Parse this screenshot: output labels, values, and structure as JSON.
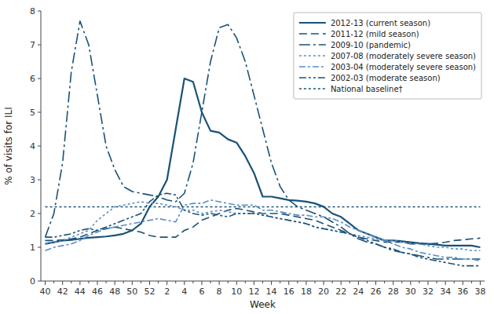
{
  "chart_data": {
    "type": "line",
    "xlabel": "Week",
    "ylabel": "% of visits for ILI",
    "categories": [
      "40",
      null,
      "42",
      null,
      "44",
      null,
      "46",
      null,
      "48",
      null,
      "50",
      null,
      "52",
      null,
      "2",
      null,
      "4",
      null,
      "6",
      null,
      "8",
      null,
      "10",
      null,
      "12",
      null,
      "14",
      null,
      "16",
      null,
      "18",
      null,
      "20",
      null,
      "22",
      null,
      "24",
      null,
      "26",
      null,
      "28",
      null,
      "30",
      null,
      "32",
      null,
      "34",
      null,
      "36",
      null,
      "38"
    ],
    "ylim": [
      0,
      8
    ],
    "yticks": [
      0,
      1,
      2,
      3,
      4,
      5,
      6,
      7,
      8
    ],
    "grid": false,
    "legend": "upper right",
    "series": [
      {
        "name": "2012-13 (current season)",
        "color": "#1a5276",
        "line_style": "solid",
        "values": [
          1.1,
          1.15,
          1.2,
          1.22,
          1.25,
          1.28,
          1.3,
          1.32,
          1.35,
          1.4,
          1.5,
          1.7,
          2.2,
          2.5,
          3.0,
          4.5,
          6.0,
          5.9,
          5.0,
          4.45,
          4.4,
          4.2,
          4.1,
          3.7,
          3.2,
          2.5,
          2.5,
          2.45,
          2.4,
          2.38,
          2.35,
          2.3,
          2.2,
          2.0,
          1.9,
          1.7,
          1.5,
          1.4,
          1.3,
          1.2,
          1.2,
          1.18,
          1.15,
          1.12,
          1.1,
          1.08,
          1.05,
          1.05,
          1.05,
          1.05,
          1.0
        ]
      },
      {
        "name": "2011-12 (mild season)",
        "color": "#1a5276",
        "line_style": "dashed",
        "values": [
          1.2,
          1.2,
          1.22,
          1.25,
          1.3,
          1.4,
          1.5,
          1.55,
          1.6,
          1.55,
          1.5,
          1.45,
          1.35,
          1.3,
          1.3,
          1.3,
          1.5,
          1.6,
          1.8,
          1.9,
          2.0,
          2.1,
          2.15,
          2.1,
          2.05,
          2.0,
          2.0,
          2.0,
          1.95,
          1.9,
          1.85,
          1.8,
          1.7,
          1.6,
          1.5,
          1.4,
          1.3,
          1.25,
          1.2,
          1.15,
          1.15,
          1.15,
          1.1,
          1.1,
          1.1,
          1.12,
          1.15,
          1.2,
          1.22,
          1.25,
          1.27
        ]
      },
      {
        "name": "2009-10 (pandemic)",
        "color": "#1a5276",
        "line_style": "longdashdot",
        "values": [
          1.3,
          2.0,
          3.5,
          6.2,
          7.7,
          7.0,
          5.5,
          4.0,
          3.3,
          2.8,
          2.65,
          2.6,
          2.55,
          2.5,
          2.4,
          2.35,
          2.6,
          3.5,
          5.0,
          6.5,
          7.5,
          7.6,
          7.2,
          6.5,
          5.5,
          4.5,
          3.5,
          2.8,
          2.4,
          2.2,
          2.1,
          2.0,
          1.9,
          1.75,
          1.6,
          1.4,
          1.25,
          1.15,
          1.1,
          1.0,
          0.9,
          0.85,
          0.8,
          0.75,
          0.7,
          0.65,
          0.65,
          0.65,
          0.65,
          0.65,
          0.65
        ]
      },
      {
        "name": "2007-08 (moderately severe season)",
        "color": "#5b8ec9",
        "line_style": "dotted",
        "values": [
          1.1,
          1.15,
          1.2,
          1.3,
          1.4,
          1.5,
          1.8,
          2.0,
          2.2,
          2.25,
          2.3,
          2.35,
          2.3,
          2.3,
          2.25,
          2.2,
          2.1,
          2.1,
          2.0,
          2.05,
          2.1,
          2.05,
          2.0,
          2.0,
          2.0,
          2.0,
          1.9,
          1.85,
          1.8,
          1.75,
          1.7,
          1.6,
          1.55,
          1.5,
          1.45,
          1.4,
          1.35,
          1.3,
          1.25,
          1.2,
          1.2,
          1.15,
          1.1,
          1.1,
          1.05,
          1.0,
          1.0,
          0.95,
          0.95,
          0.9,
          0.9
        ]
      },
      {
        "name": "2003-04 (moderately severe season)",
        "color": "#5b8ec9",
        "line_style": "dashdot",
        "values": [
          0.9,
          1.0,
          1.05,
          1.1,
          1.2,
          1.35,
          1.45,
          1.55,
          1.6,
          1.65,
          1.7,
          1.75,
          1.8,
          1.85,
          1.8,
          1.75,
          2.25,
          2.3,
          2.3,
          2.4,
          2.35,
          2.3,
          2.25,
          2.25,
          2.25,
          2.1,
          2.1,
          2.05,
          2.0,
          1.95,
          1.95,
          1.9,
          1.9,
          1.85,
          1.75,
          1.6,
          1.5,
          1.4,
          1.3,
          1.2,
          1.1,
          1.0,
          0.95,
          0.85,
          0.8,
          0.75,
          0.7,
          0.7,
          0.65,
          0.65,
          0.6
        ]
      },
      {
        "name": "2002-03 (moderate season)",
        "color": "#1a5276",
        "line_style": "dashdotdot",
        "values": [
          1.3,
          1.3,
          1.35,
          1.4,
          1.5,
          1.55,
          1.5,
          1.6,
          1.7,
          1.8,
          1.9,
          2.0,
          2.35,
          2.55,
          2.6,
          2.55,
          2.1,
          2.0,
          1.95,
          2.0,
          1.95,
          1.9,
          2.0,
          2.0,
          2.0,
          1.95,
          1.9,
          1.85,
          1.8,
          1.75,
          1.7,
          1.6,
          1.55,
          1.5,
          1.45,
          1.4,
          1.3,
          1.2,
          1.1,
          1.0,
          0.95,
          0.85,
          0.8,
          0.7,
          0.65,
          0.6,
          0.55,
          0.5,
          0.45,
          0.45,
          0.45
        ]
      }
    ],
    "baseline": {
      "name": "National baseline†",
      "value": 2.2,
      "color": "#1a5276",
      "line_style": "dotted"
    }
  }
}
